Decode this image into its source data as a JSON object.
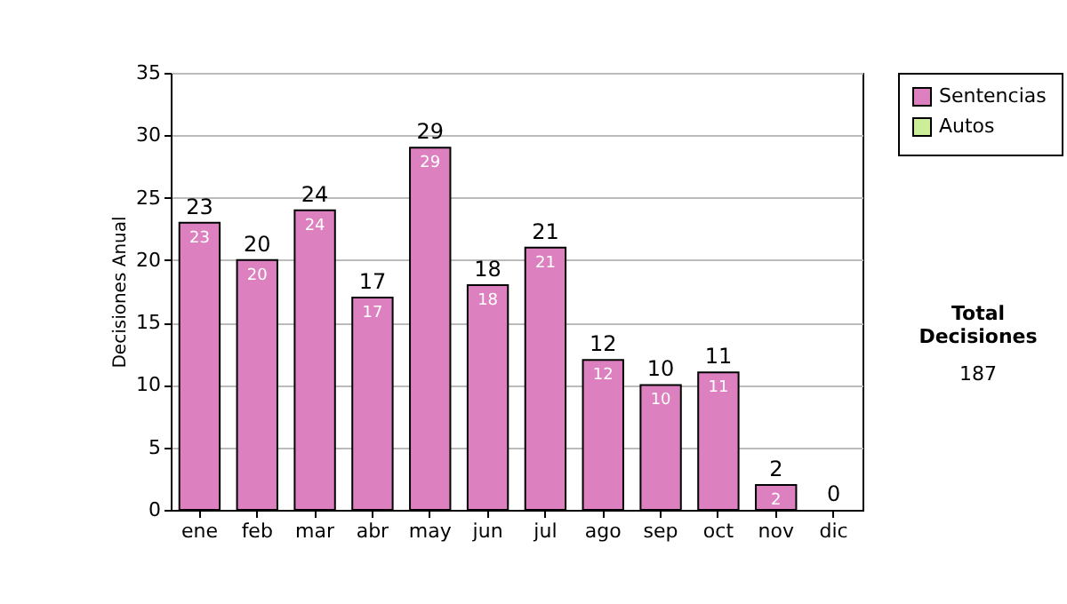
{
  "chart_data": {
    "type": "bar",
    "ylabel": "Decisiones Anual",
    "categories": [
      "ene",
      "feb",
      "mar",
      "abr",
      "may",
      "jun",
      "jul",
      "ago",
      "sep",
      "oct",
      "nov",
      "dic"
    ],
    "series": [
      {
        "name": "Sentencias",
        "color": "#dd80c0",
        "values": [
          23,
          20,
          24,
          17,
          29,
          18,
          21,
          12,
          10,
          11,
          2,
          0
        ],
        "value_labels": [
          "23",
          "20",
          "24",
          "17",
          "29",
          "18",
          "21",
          "12",
          "10",
          "11",
          "2",
          null
        ]
      },
      {
        "name": "Autos",
        "color": "#ccee99",
        "values": [
          0,
          0,
          0,
          0,
          0,
          0,
          0,
          0,
          0,
          0,
          0,
          0
        ]
      }
    ],
    "stacked": true,
    "totals": [
      "23",
      "20",
      "24",
      "17",
      "29",
      "18",
      "21",
      "12",
      "10",
      "11",
      "2",
      "0"
    ],
    "ylim": [
      0,
      35
    ],
    "yticks": [
      0,
      5,
      10,
      15,
      20,
      25,
      30,
      35
    ],
    "grid": "y",
    "legend": "right",
    "annotations": [
      "Total Decisiones",
      "187"
    ]
  }
}
